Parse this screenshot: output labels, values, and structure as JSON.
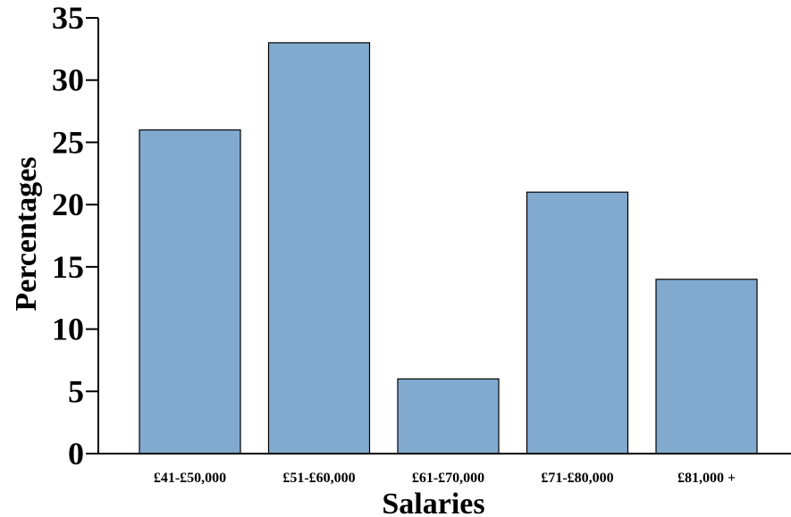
{
  "chart_data": {
    "type": "bar",
    "categories": [
      "£41-£50,000",
      "£51-£60,000",
      "£61-£70,000",
      "£71-£80,000",
      "£81,000 +"
    ],
    "values": [
      26,
      33,
      6,
      21,
      14
    ],
    "title": "",
    "xlabel": "Salaries",
    "ylabel": "Percentages",
    "ylim": [
      0,
      35
    ],
    "yticks": [
      0,
      5,
      10,
      15,
      20,
      25,
      30,
      35
    ],
    "grid": false,
    "bar_color": "#82aacf"
  }
}
